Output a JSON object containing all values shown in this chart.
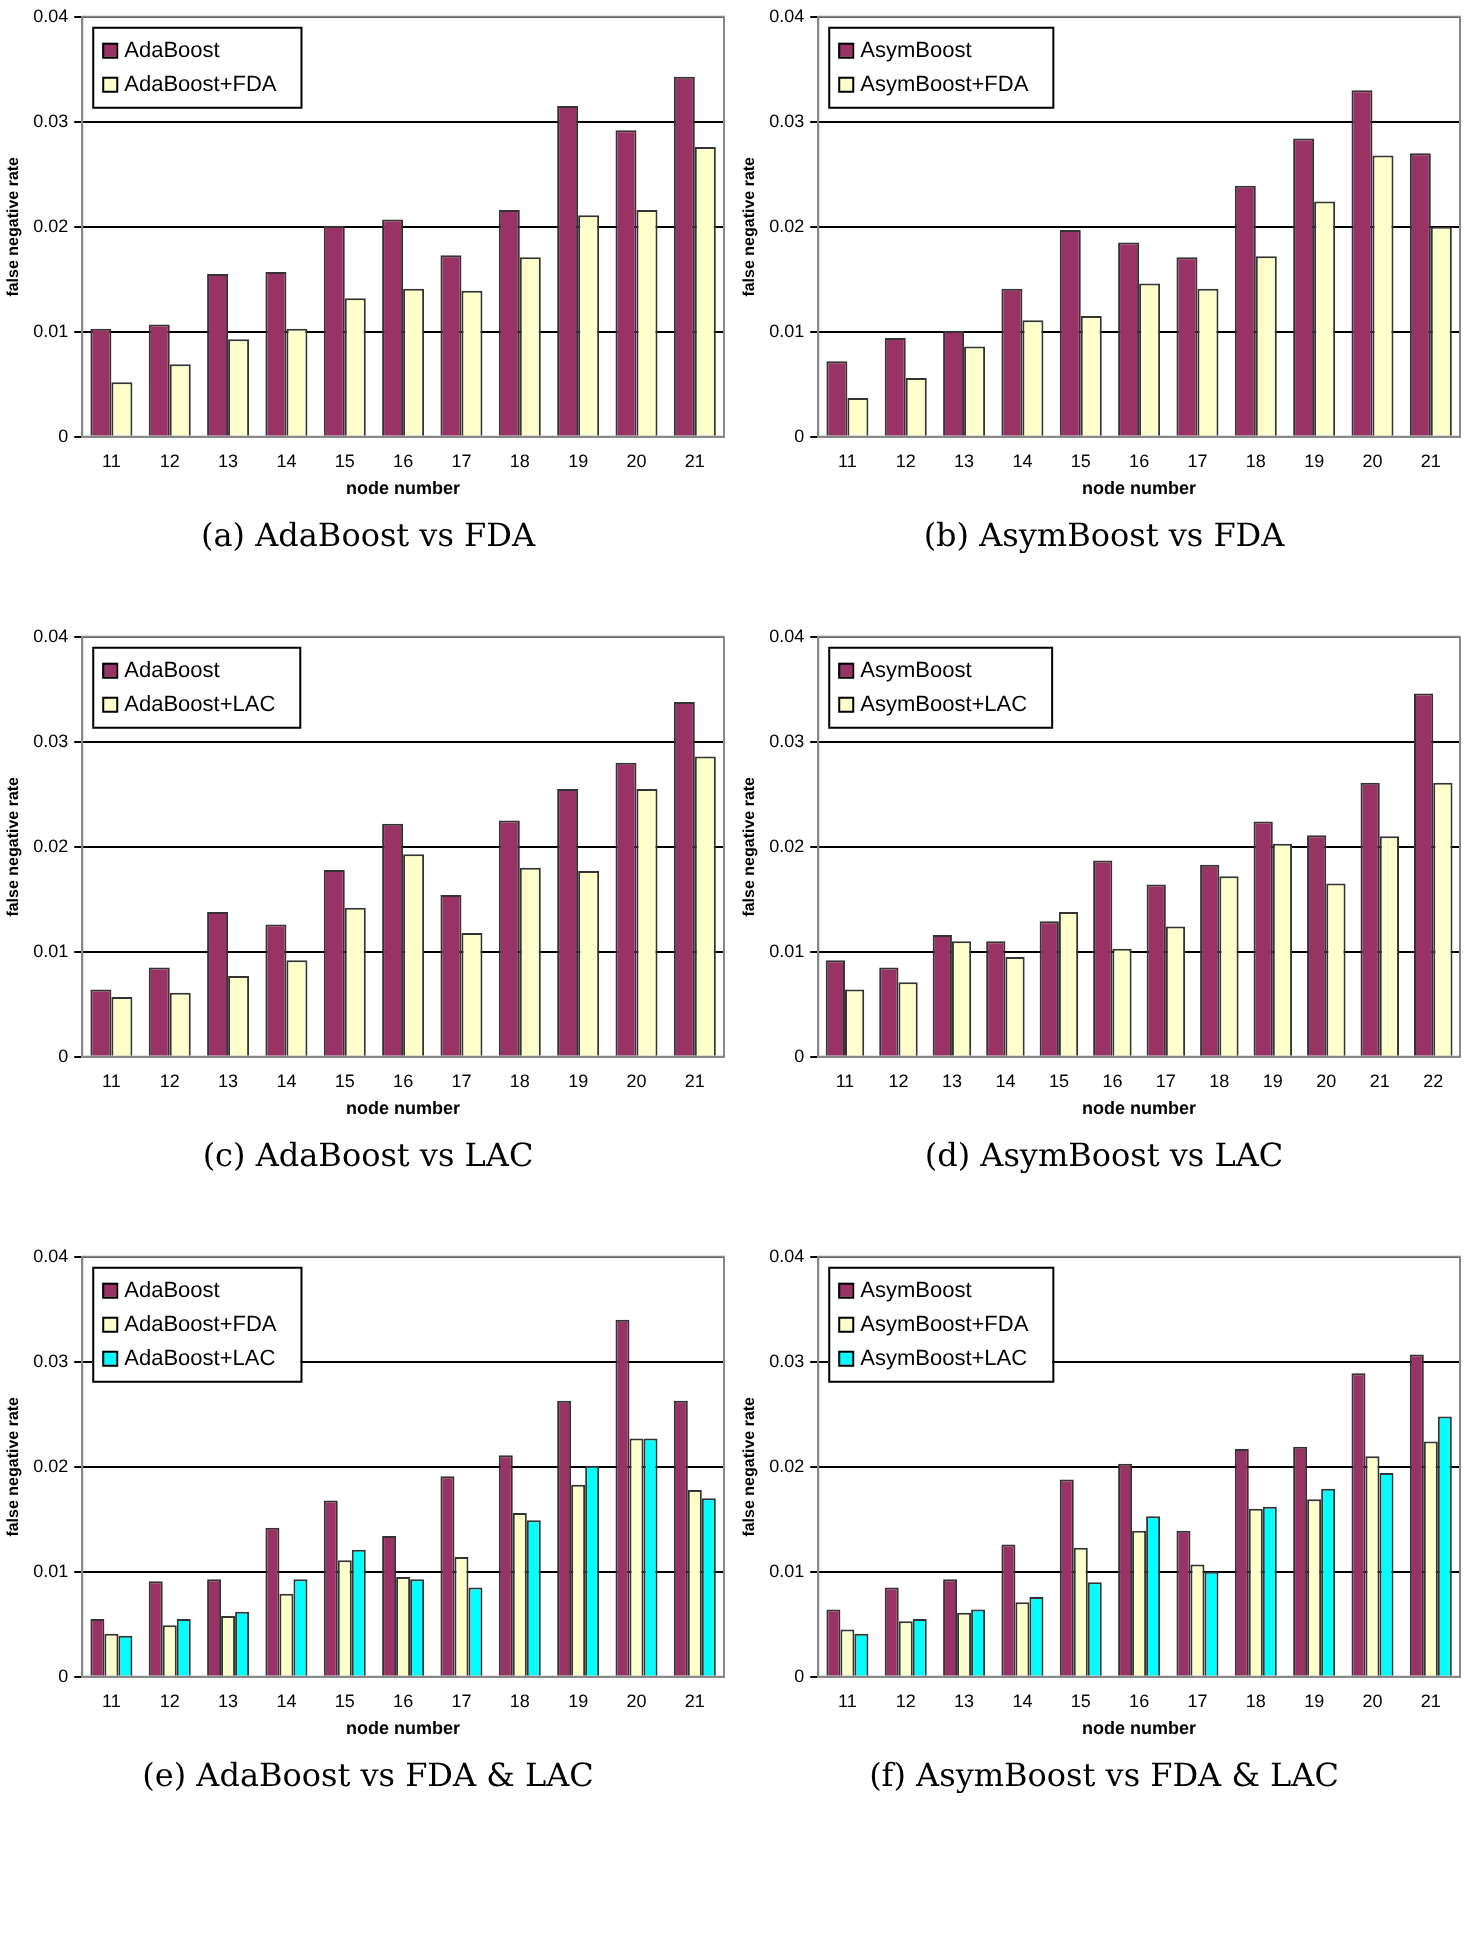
{
  "chart_data": [
    {
      "type": "bar",
      "title": "(a) AdaBoost vs FDA",
      "xlabel": "node number",
      "ylabel": "false negative rate",
      "categories": [
        "11",
        "12",
        "13",
        "14",
        "15",
        "16",
        "17",
        "18",
        "19",
        "20",
        "21"
      ],
      "ylim": [
        0,
        0.04
      ],
      "yticks": [
        0,
        0.01,
        0.02,
        0.03,
        0.04
      ],
      "grid": "y",
      "legend": "top left",
      "series": [
        {
          "name": "AdaBoost",
          "color": "#993366",
          "values": [
            0.0103,
            0.0107,
            0.0155,
            0.0157,
            0.0201,
            0.0207,
            0.0173,
            0.0216,
            0.0315,
            0.0292,
            0.0343
          ]
        },
        {
          "name": "AdaBoost+FDA",
          "color": "#ffffcc",
          "values": [
            0.0052,
            0.0069,
            0.0093,
            0.0103,
            0.0132,
            0.0141,
            0.0139,
            0.0171,
            0.0211,
            0.0216,
            0.0276
          ]
        }
      ]
    },
    {
      "type": "bar",
      "title": "(b) AsymBoost vs FDA",
      "xlabel": "node number",
      "ylabel": "false negative rate",
      "categories": [
        "11",
        "12",
        "13",
        "14",
        "15",
        "16",
        "17",
        "18",
        "19",
        "20",
        "21"
      ],
      "ylim": [
        0,
        0.04
      ],
      "yticks": [
        0,
        0.01,
        0.02,
        0.03,
        0.04
      ],
      "grid": "y",
      "legend": "top left",
      "series": [
        {
          "name": "AsymBoost",
          "color": "#993366",
          "values": [
            0.0072,
            0.0094,
            0.0101,
            0.0141,
            0.0197,
            0.0185,
            0.0171,
            0.0239,
            0.0284,
            0.033,
            0.027
          ]
        },
        {
          "name": "AsymBoost+FDA",
          "color": "#ffffcc",
          "values": [
            0.0037,
            0.0056,
            0.0086,
            0.0111,
            0.0115,
            0.0146,
            0.0141,
            0.0172,
            0.0224,
            0.0268,
            0.02
          ]
        }
      ]
    },
    {
      "type": "bar",
      "title": "(c) AdaBoost vs LAC",
      "xlabel": "node number",
      "ylabel": "false negative rate",
      "categories": [
        "11",
        "12",
        "13",
        "14",
        "15",
        "16",
        "17",
        "18",
        "19",
        "20",
        "21"
      ],
      "ylim": [
        0,
        0.04
      ],
      "yticks": [
        0,
        0.01,
        0.02,
        0.03,
        0.04
      ],
      "grid": "y",
      "legend": "top left",
      "series": [
        {
          "name": "AdaBoost",
          "color": "#993366",
          "values": [
            0.0064,
            0.0085,
            0.0138,
            0.0126,
            0.0178,
            0.0222,
            0.0154,
            0.0225,
            0.0255,
            0.028,
            0.0338
          ]
        },
        {
          "name": "AdaBoost+LAC",
          "color": "#ffffcc",
          "values": [
            0.0057,
            0.0061,
            0.0077,
            0.0092,
            0.0142,
            0.0193,
            0.0118,
            0.018,
            0.0177,
            0.0255,
            0.0286
          ]
        }
      ]
    },
    {
      "type": "bar",
      "title": "(d) AsymBoost vs LAC",
      "xlabel": "node number",
      "ylabel": "false negative rate",
      "categories": [
        "11",
        "12",
        "13",
        "14",
        "15",
        "16",
        "17",
        "18",
        "19",
        "20",
        "21",
        "22"
      ],
      "ylim": [
        0,
        0.04
      ],
      "yticks": [
        0,
        0.01,
        0.02,
        0.03,
        0.04
      ],
      "grid": "y",
      "legend": "top left",
      "series": [
        {
          "name": "AsymBoost",
          "color": "#993366",
          "values": [
            0.0092,
            0.0085,
            0.0116,
            0.011,
            0.0129,
            0.0187,
            0.0164,
            0.0183,
            0.0224,
            0.0211,
            0.0261,
            0.0346
          ]
        },
        {
          "name": "AsymBoost+LAC",
          "color": "#ffffcc",
          "values": [
            0.0064,
            0.0071,
            0.011,
            0.0095,
            0.0138,
            0.0103,
            0.0124,
            0.0172,
            0.0203,
            0.0165,
            0.021,
            0.0261
          ]
        }
      ]
    },
    {
      "type": "bar",
      "title": "(e) AdaBoost vs FDA & LAC",
      "xlabel": "node number",
      "ylabel": "false negative rate",
      "categories": [
        "11",
        "12",
        "13",
        "14",
        "15",
        "16",
        "17",
        "18",
        "19",
        "20",
        "21"
      ],
      "ylim": [
        0,
        0.04
      ],
      "yticks": [
        0,
        0.01,
        0.02,
        0.03,
        0.04
      ],
      "grid": "y",
      "legend": "top left",
      "series": [
        {
          "name": "AdaBoost",
          "color": "#993366",
          "values": [
            0.0055,
            0.0091,
            0.0093,
            0.0142,
            0.0168,
            0.0134,
            0.0191,
            0.0211,
            0.0263,
            0.034,
            0.0263
          ]
        },
        {
          "name": "AdaBoost+FDA",
          "color": "#ffffcc",
          "values": [
            0.0041,
            0.0049,
            0.0058,
            0.0079,
            0.0111,
            0.0095,
            0.0114,
            0.0156,
            0.0183,
            0.0227,
            0.0178
          ]
        },
        {
          "name": "AdaBoost+LAC",
          "color": "#00ffff",
          "values": [
            0.0039,
            0.0055,
            0.0062,
            0.0093,
            0.0121,
            0.0093,
            0.0085,
            0.0149,
            0.0201,
            0.0227,
            0.017
          ]
        }
      ]
    },
    {
      "type": "bar",
      "title": "(f) AsymBoost vs FDA & LAC",
      "xlabel": "node number",
      "ylabel": "false negative rate",
      "categories": [
        "11",
        "12",
        "13",
        "14",
        "15",
        "16",
        "17",
        "18",
        "19",
        "20",
        "21"
      ],
      "ylim": [
        0,
        0.04
      ],
      "yticks": [
        0,
        0.01,
        0.02,
        0.03,
        0.04
      ],
      "grid": "y",
      "legend": "top left",
      "series": [
        {
          "name": "AsymBoost",
          "color": "#993366",
          "values": [
            0.0064,
            0.0085,
            0.0093,
            0.0126,
            0.0188,
            0.0203,
            0.0139,
            0.0217,
            0.0219,
            0.0289,
            0.0307
          ]
        },
        {
          "name": "AsymBoost+FDA",
          "color": "#ffffcc",
          "values": [
            0.0045,
            0.0053,
            0.0061,
            0.0071,
            0.0123,
            0.0139,
            0.0107,
            0.016,
            0.0169,
            0.021,
            0.0224
          ]
        },
        {
          "name": "AsymBoost+LAC",
          "color": "#00ffff",
          "values": [
            0.0041,
            0.0055,
            0.0064,
            0.0076,
            0.009,
            0.0153,
            0.01,
            0.0162,
            0.0179,
            0.0194,
            0.0248
          ]
        }
      ]
    }
  ]
}
